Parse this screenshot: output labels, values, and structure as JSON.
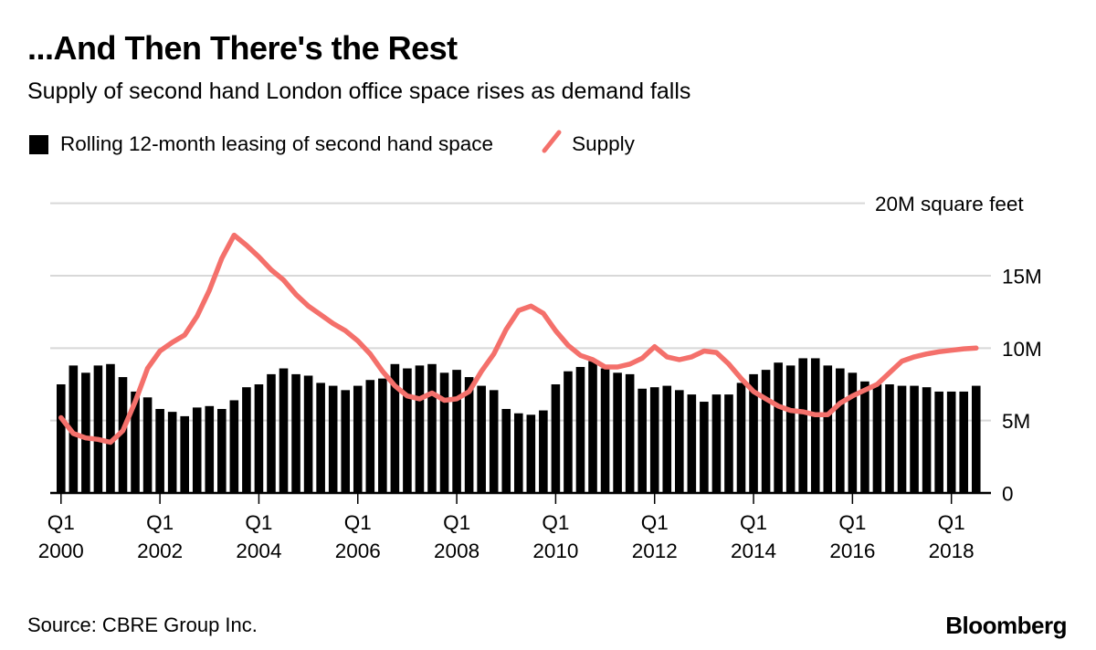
{
  "header": {
    "title": "...And Then There's the Rest",
    "subtitle": "Supply of second hand London office space rises as demand falls"
  },
  "legend": {
    "bars_label": "Rolling 12-month leasing of second hand space",
    "line_label": "Supply"
  },
  "footer": {
    "source": "Source: CBRE Group Inc.",
    "brand": "Bloomberg"
  },
  "colors": {
    "bar": "#000000",
    "line": "#f4706b",
    "grid": "#d8d8d8",
    "axis": "#000000"
  },
  "chart_data": {
    "type": "bar+line",
    "title": "...And Then There's the Rest",
    "subtitle": "Supply of second hand London office space rises as demand falls",
    "unit": "million square feet",
    "x_start_quarter": "Q1 2000",
    "x_end_quarter": "Q3 2018",
    "ylim": [
      0,
      20
    ],
    "grid": true,
    "legend_position": "top",
    "y_ticks": [
      {
        "value": 20,
        "label": "20M square feet"
      },
      {
        "value": 15,
        "label": "15M"
      },
      {
        "value": 10,
        "label": "10M"
      },
      {
        "value": 5,
        "label": "5M"
      },
      {
        "value": 0,
        "label": "0"
      }
    ],
    "x_ticks": [
      {
        "q": "Q1",
        "year": "2000"
      },
      {
        "q": "Q1",
        "year": "2002"
      },
      {
        "q": "Q1",
        "year": "2004"
      },
      {
        "q": "Q1",
        "year": "2006"
      },
      {
        "q": "Q1",
        "year": "2008"
      },
      {
        "q": "Q1",
        "year": "2010"
      },
      {
        "q": "Q1",
        "year": "2012"
      },
      {
        "q": "Q1",
        "year": "2014"
      },
      {
        "q": "Q1",
        "year": "2016"
      },
      {
        "q": "Q1",
        "year": "2018"
      }
    ],
    "series": [
      {
        "name": "Rolling 12-month leasing of second hand space",
        "type": "bar",
        "color": "#000000",
        "values": [
          7.5,
          8.8,
          8.3,
          8.8,
          8.9,
          8.0,
          7.0,
          6.6,
          5.8,
          5.6,
          5.3,
          5.9,
          6.0,
          5.8,
          6.4,
          7.3,
          7.5,
          8.2,
          8.6,
          8.2,
          8.1,
          7.6,
          7.4,
          7.1,
          7.4,
          7.8,
          7.9,
          8.9,
          8.6,
          8.8,
          8.9,
          8.3,
          8.5,
          8.0,
          7.4,
          7.1,
          5.8,
          5.5,
          5.4,
          5.7,
          7.5,
          8.4,
          8.7,
          9.1,
          8.6,
          8.3,
          8.2,
          7.2,
          7.3,
          7.4,
          7.1,
          6.8,
          6.3,
          6.8,
          6.8,
          7.6,
          8.2,
          8.5,
          9.0,
          8.8,
          9.3,
          9.3,
          8.8,
          8.6,
          8.3,
          7.7,
          7.5,
          7.5,
          7.4,
          7.4,
          7.3,
          7.0,
          7.0,
          7.0,
          7.4
        ]
      },
      {
        "name": "Supply",
        "type": "line",
        "color": "#f4706b",
        "values": [
          5.2,
          4.1,
          3.8,
          3.7,
          3.5,
          4.3,
          6.3,
          8.6,
          9.8,
          10.4,
          10.9,
          12.2,
          14.0,
          16.2,
          17.8,
          17.1,
          16.3,
          15.4,
          14.7,
          13.7,
          12.9,
          12.3,
          11.7,
          11.2,
          10.5,
          9.6,
          8.4,
          7.4,
          6.7,
          6.5,
          6.9,
          6.4,
          6.5,
          7.0,
          8.4,
          9.6,
          11.3,
          12.6,
          12.9,
          12.4,
          11.2,
          10.2,
          9.5,
          9.2,
          8.7,
          8.7,
          8.9,
          9.3,
          10.1,
          9.4,
          9.2,
          9.4,
          9.8,
          9.7,
          8.9,
          7.9,
          7.0,
          6.5,
          6.0,
          5.7,
          5.6,
          5.4,
          5.4,
          6.2,
          6.7,
          7.1,
          7.5,
          8.3,
          9.1,
          9.4,
          9.6,
          9.75,
          9.85,
          9.95,
          10.0
        ]
      }
    ]
  }
}
